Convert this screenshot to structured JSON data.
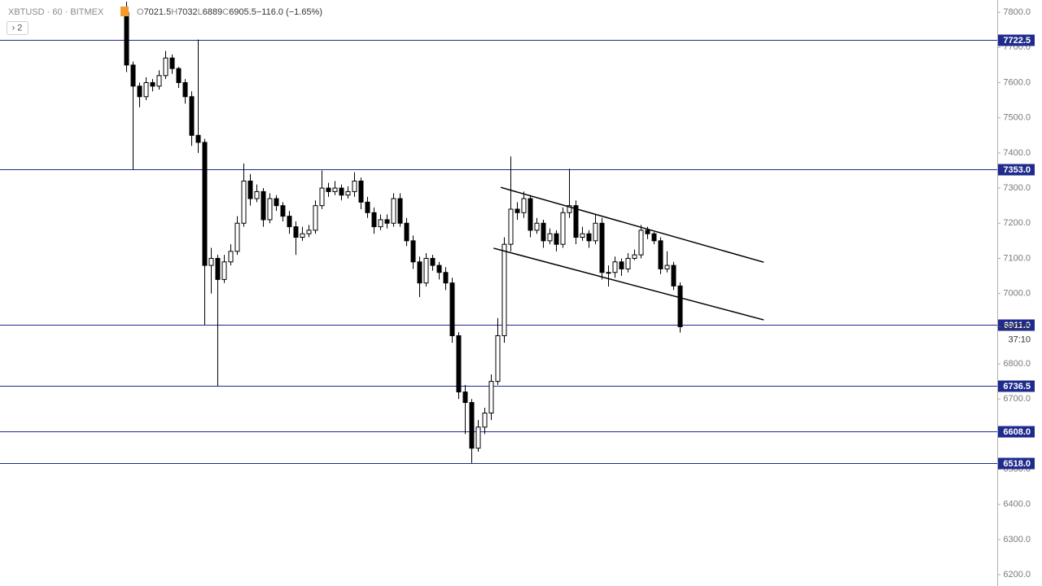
{
  "chart_data": {
    "type": "candlestick",
    "symbol": "XBTUSD · 60 · BITMEX",
    "ohlc_legend": [
      {
        "label": "O",
        "value": 7021.5
      },
      {
        "label": "H",
        "value": 7032.0
      },
      {
        "label": "L",
        "value": 6889.0
      },
      {
        "label": "C",
        "value": 6905.5
      }
    ],
    "change": "−116.0 (−1.65%)",
    "indicator_button": "› 2",
    "open": [
      7800,
      7650,
      7590,
      7560,
      7600,
      7590,
      7620,
      7670,
      7640,
      7600,
      7560,
      7450,
      7430,
      7080,
      7100,
      7040,
      7090,
      7120,
      7200,
      7320,
      7270,
      7290,
      7210,
      7270,
      7250,
      7220,
      7190,
      7160,
      7170,
      7180,
      7250,
      7300,
      7290,
      7300,
      7280,
      7290,
      7320,
      7260,
      7230,
      7190,
      7210,
      7200,
      7270,
      7200,
      7150,
      7090,
      7030,
      7100,
      7080,
      7060,
      7030,
      6880,
      6720,
      6690,
      6560,
      6620,
      6660,
      6750,
      6880,
      7140,
      7240,
      7230,
      7270,
      7180,
      7200,
      7150,
      7170,
      7140,
      7230,
      7250,
      7160,
      7170,
      7150,
      7200,
      7060,
      7060,
      7090,
      7070,
      7100,
      7110,
      7180,
      7170,
      7150,
      7070,
      7080,
      7021.5
    ],
    "high": [
      7830,
      7660,
      7600,
      7615,
      7610,
      7635,
      7690,
      7680,
      7645,
      7610,
      7575,
      7722.5,
      7440,
      7130,
      7110,
      7110,
      7140,
      7220,
      7370,
      7340,
      7310,
      7300,
      7285,
      7280,
      7260,
      7235,
      7205,
      7190,
      7195,
      7265,
      7350,
      7315,
      7320,
      7310,
      7305,
      7345,
      7330,
      7275,
      7245,
      7225,
      7225,
      7285,
      7285,
      7215,
      7165,
      7105,
      7115,
      7110,
      7090,
      7075,
      7045,
      6890,
      6740,
      6700,
      6640,
      6675,
      6770,
      6930,
      7160,
      7390,
      7260,
      7290,
      7280,
      7215,
      7210,
      7185,
      7180,
      7245,
      7355,
      7265,
      7190,
      7180,
      7225,
      7215,
      7080,
      7105,
      7100,
      7115,
      7125,
      7195,
      7190,
      7175,
      7160,
      7120,
      7090,
      7032
    ],
    "low": [
      7630,
      7353,
      7530,
      7550,
      7575,
      7580,
      7610,
      7625,
      7585,
      7540,
      7420,
      7400,
      6911,
      7000,
      6736.5,
      7030,
      7080,
      7110,
      7190,
      7250,
      7260,
      7190,
      7200,
      7235,
      7205,
      7170,
      7110,
      7150,
      7160,
      7170,
      7240,
      7275,
      7280,
      7265,
      7270,
      7275,
      7240,
      7215,
      7170,
      7180,
      7185,
      7190,
      7190,
      7135,
      7070,
      6990,
      7020,
      7065,
      7040,
      7010,
      6860,
      6700,
      6600,
      6518,
      6550,
      6600,
      6640,
      6740,
      6860,
      7120,
      7210,
      7215,
      7160,
      7170,
      7130,
      7140,
      7120,
      7130,
      7215,
      7140,
      7150,
      7130,
      7140,
      7040,
      7020,
      7045,
      7050,
      7060,
      7095,
      7100,
      7155,
      7140,
      7055,
      7060,
      7010,
      6889
    ],
    "close": [
      7650,
      7590,
      7560,
      7600,
      7590,
      7620,
      7670,
      7640,
      7600,
      7560,
      7450,
      7430,
      7080,
      7100,
      7040,
      7090,
      7120,
      7200,
      7320,
      7270,
      7290,
      7210,
      7270,
      7250,
      7220,
      7190,
      7160,
      7170,
      7180,
      7250,
      7300,
      7290,
      7300,
      7280,
      7290,
      7320,
      7260,
      7230,
      7190,
      7210,
      7200,
      7270,
      7200,
      7150,
      7090,
      7030,
      7100,
      7080,
      7060,
      7030,
      6880,
      6720,
      6690,
      6560,
      6620,
      6660,
      6750,
      6880,
      7140,
      7240,
      7230,
      7270,
      7180,
      7200,
      7150,
      7170,
      7140,
      7230,
      7250,
      7160,
      7170,
      7150,
      7200,
      7060,
      7060,
      7090,
      7070,
      7100,
      7110,
      7180,
      7170,
      7150,
      7070,
      7080,
      7021.5,
      6905.5
    ],
    "up_color": "#ffffff",
    "down_color": "#000000",
    "xlim": [
      -19.4,
      133.75
    ],
    "ylim": [
      6168,
      7835
    ],
    "yticks": [
      {
        "value": 6200,
        "label": "6200.0"
      },
      {
        "value": 6300,
        "label": "6300.0"
      },
      {
        "value": 6400,
        "label": "6400.0"
      },
      {
        "value": 6500,
        "label": "6500.0"
      },
      {
        "value": 6600,
        "label": "6600.0"
      },
      {
        "value": 6700,
        "label": "6700.0"
      },
      {
        "value": 6800,
        "label": "6800.0"
      },
      {
        "value": 6900,
        "label": "6900.0"
      },
      {
        "value": 7000,
        "label": "7000.0"
      },
      {
        "value": 7100,
        "label": "7100.0"
      },
      {
        "value": 7200,
        "label": "7200.0"
      },
      {
        "value": 7300,
        "label": "7300.0"
      },
      {
        "value": 7400,
        "label": "7400.0"
      },
      {
        "value": 7500,
        "label": "7500.0"
      },
      {
        "value": 7600,
        "label": "7600.0"
      },
      {
        "value": 7700,
        "label": "7700.0"
      },
      {
        "value": 7800,
        "label": "7800.0"
      }
    ],
    "levels": [
      {
        "value": 7722.5,
        "label": "7722.5"
      },
      {
        "value": 7353,
        "label": "7353.0"
      },
      {
        "value": 6911,
        "label": "6911.0"
      },
      {
        "value": 6736.5,
        "label": "6736.5"
      },
      {
        "value": 6608,
        "label": "6608.0"
      },
      {
        "value": 6518,
        "label": "6518.0"
      }
    ],
    "level_color": "#1f2b8c",
    "trend_lines": [
      {
        "x": [
          57.5,
          97.9
        ],
        "y": [
          7302,
          7089
        ]
      },
      {
        "x": [
          56.4,
          97.9
        ],
        "y": [
          7129,
          6925
        ]
      }
    ],
    "last_price": 6905.5,
    "countdown": "37:10"
  }
}
